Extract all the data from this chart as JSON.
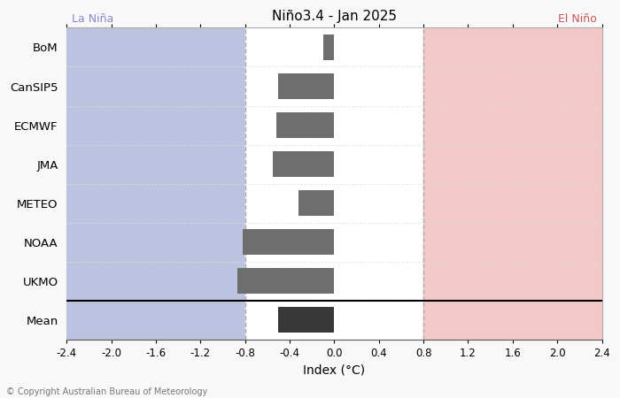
{
  "title": "Niño3.4 - Jan 2025",
  "xlabel": "Index (°C)",
  "categories": [
    "BoM",
    "CanSIP5",
    "ECMWF",
    "JMA",
    "METEO",
    "NOAA",
    "UKMO",
    "Mean"
  ],
  "values": [
    -0.1,
    -0.5,
    -0.52,
    -0.55,
    -0.32,
    -0.82,
    -0.87,
    -0.5
  ],
  "bar_colors": [
    "#6e6e6e",
    "#6e6e6e",
    "#6e6e6e",
    "#6e6e6e",
    "#6e6e6e",
    "#6e6e6e",
    "#6e6e6e",
    "#383838"
  ],
  "xlim": [
    -2.4,
    2.4
  ],
  "xticks": [
    -2.4,
    -2.0,
    -1.6,
    -1.2,
    -0.8,
    -0.4,
    0.0,
    0.4,
    0.8,
    1.2,
    1.6,
    2.0,
    2.4
  ],
  "xtick_labels": [
    "-2.4",
    "-2.0",
    "-1.6",
    "-1.2",
    "-0.8",
    "-0.4",
    "0.0",
    "0.4",
    "0.8",
    "1.2",
    "1.6",
    "2.0",
    "2.4"
  ],
  "la_nina_threshold": -0.8,
  "el_nino_threshold": 0.8,
  "la_nina_color": "#bcc3e0",
  "el_nino_color": "#f2c8c8",
  "la_nina_label": "La Niña",
  "el_nino_label": "El Niño",
  "la_nina_label_color": "#8888cc",
  "el_nino_label_color": "#cc5555",
  "dashed_line_color": "#aaaaaa",
  "dotted_line_color": "#dddddd",
  "mean_separator_color": "#000000",
  "copyright_text": "© Copyright Australian Bureau of Meteorology",
  "background_color": "#f8f8f8",
  "bar_height": 0.65,
  "figwidth": 7.0,
  "figheight": 4.5,
  "dpi": 100
}
